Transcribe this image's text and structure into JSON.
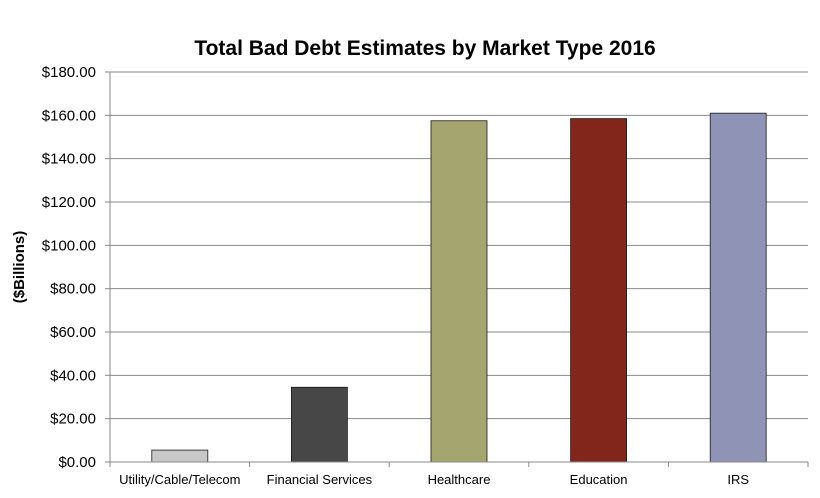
{
  "chart_data": {
    "type": "bar",
    "title": "Total Bad Debt Estimates by Market Type 2016",
    "xlabel": "",
    "ylabel": "($Billions)",
    "ylim": [
      0,
      180
    ],
    "yticks": [
      "$0.00",
      "$20.00",
      "$40.00",
      "$60.00",
      "$80.00",
      "$100.00",
      "$120.00",
      "$140.00",
      "$160.00",
      "$180.00"
    ],
    "categories": [
      "Utility/Cable/Telecom",
      "Financial Services",
      "Healthcare",
      "Education",
      "IRS"
    ],
    "values": [
      5.5,
      34.5,
      157.5,
      158.5,
      161.0
    ],
    "colors": [
      "#c8c8c8",
      "#474747",
      "#a5a570",
      "#82261c",
      "#8f93b6"
    ],
    "grid": true,
    "legend": "none"
  }
}
